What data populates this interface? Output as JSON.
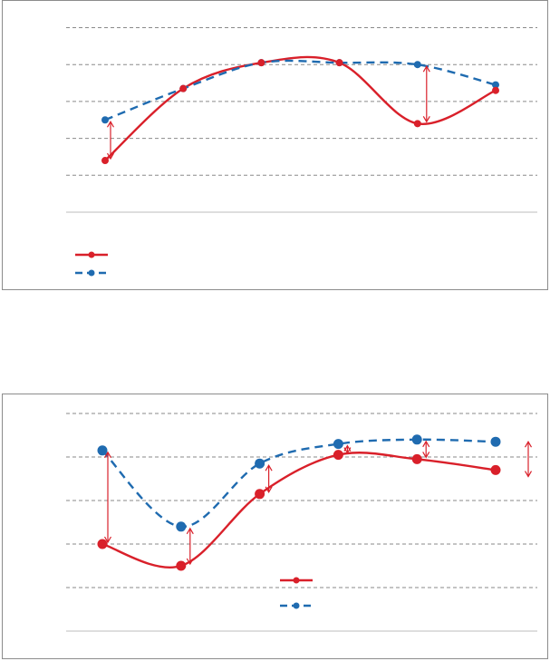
{
  "colors": {
    "series_red": "#d9202a",
    "series_blue": "#1f6bb0",
    "grid": "#8a8a8a",
    "axis": "#bdbdbd",
    "arrow": "#d9202a"
  },
  "chart_data": [
    {
      "type": "line",
      "title": "",
      "xlabel": "",
      "ylabel": "",
      "x": [
        1,
        2,
        3,
        4,
        5,
        6
      ],
      "ylim": [
        0,
        5
      ],
      "grid": true,
      "legend_position": "bottom-left",
      "series": [
        {
          "values": [
            1.4,
            3.35,
            4.05,
            4.05,
            2.4,
            3.3
          ],
          "color": "#d9202a",
          "style": "solid"
        },
        {
          "values": [
            2.5,
            3.35,
            4.05,
            4.05,
            4.0,
            3.45
          ],
          "color": "#1f6bb0",
          "style": "dashed"
        }
      ],
      "difference_arrows_at": [
        1,
        5
      ]
    },
    {
      "type": "line",
      "title": "",
      "xlabel": "",
      "ylabel": "",
      "x": [
        1,
        2,
        3,
        4,
        5,
        6
      ],
      "ylim": [
        0,
        5
      ],
      "grid": true,
      "legend_position": "center",
      "series": [
        {
          "values": [
            2.0,
            1.5,
            3.15,
            4.05,
            3.95,
            3.7
          ],
          "color": "#d9202a",
          "style": "solid"
        },
        {
          "values": [
            4.15,
            2.4,
            3.85,
            4.3,
            4.4,
            4.35
          ],
          "color": "#1f6bb0",
          "style": "dashed"
        }
      ],
      "difference_arrows_at": [
        1,
        2,
        3,
        4,
        5
      ],
      "extra_arrow": true
    }
  ]
}
